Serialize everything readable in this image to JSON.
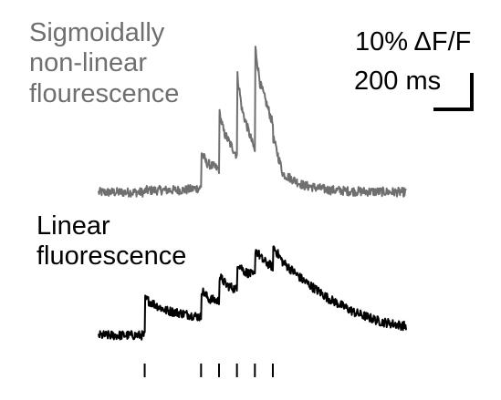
{
  "labels": {
    "gray_line1": "Sigmoidally",
    "gray_line2": "non-linear",
    "gray_line3": "flourescence",
    "black_line1": "Linear",
    "black_line2": "fluorescence"
  },
  "scale_bar": {
    "y_label": "10% ΔF/F",
    "x_label": "200 ms"
  },
  "colors": {
    "gray_trace": "#6f6f6f",
    "black_trace": "#000000"
  },
  "chart_data": {
    "type": "line",
    "xlabel": "",
    "ylabel": "",
    "x_unit": "ms",
    "y_unit": "% ΔF/F",
    "scale_bar": {
      "x": 200,
      "y": 10
    },
    "xlim": [
      0,
      1200
    ],
    "stimuli_ms": [
      180,
      400,
      470,
      540,
      610,
      680
    ],
    "series": [
      {
        "name": "Sigmoidally non-linear flourescence",
        "color": "#6f6f6f",
        "noise": 1.0,
        "points": [
          [
            0,
            0
          ],
          [
            180,
            0
          ],
          [
            181,
            0.4
          ],
          [
            340,
            0.5
          ],
          [
            400,
            1.0
          ],
          [
            401,
            9.0
          ],
          [
            420,
            6.5
          ],
          [
            470,
            5.0
          ],
          [
            471,
            17.5
          ],
          [
            490,
            13.0
          ],
          [
            540,
            8.0
          ],
          [
            541,
            26.0
          ],
          [
            560,
            18.0
          ],
          [
            610,
            9.0
          ],
          [
            611,
            32.0
          ],
          [
            630,
            24.0
          ],
          [
            680,
            15.0
          ],
          [
            681,
            12.0
          ],
          [
            720,
            4.0
          ],
          [
            800,
            1.5
          ],
          [
            900,
            0.5
          ],
          [
            1000,
            0.2
          ],
          [
            1200,
            0
          ]
        ]
      },
      {
        "name": "Linear fluorescence",
        "color": "#000000",
        "noise": 1.0,
        "points": [
          [
            0,
            0
          ],
          [
            180,
            0
          ],
          [
            181,
            8.0
          ],
          [
            260,
            5.5
          ],
          [
            400,
            4.0
          ],
          [
            401,
            10.0
          ],
          [
            430,
            8.0
          ],
          [
            470,
            7.5
          ],
          [
            471,
            13.0
          ],
          [
            500,
            11.0
          ],
          [
            540,
            10.0
          ],
          [
            541,
            16.0
          ],
          [
            570,
            14.0
          ],
          [
            610,
            13.0
          ],
          [
            611,
            19.0
          ],
          [
            640,
            16.5
          ],
          [
            680,
            15.0
          ],
          [
            681,
            19.5
          ],
          [
            720,
            16.0
          ],
          [
            800,
            12.0
          ],
          [
            900,
            8.0
          ],
          [
            1000,
            5.0
          ],
          [
            1100,
            3.0
          ],
          [
            1200,
            2.0
          ]
        ]
      }
    ]
  }
}
